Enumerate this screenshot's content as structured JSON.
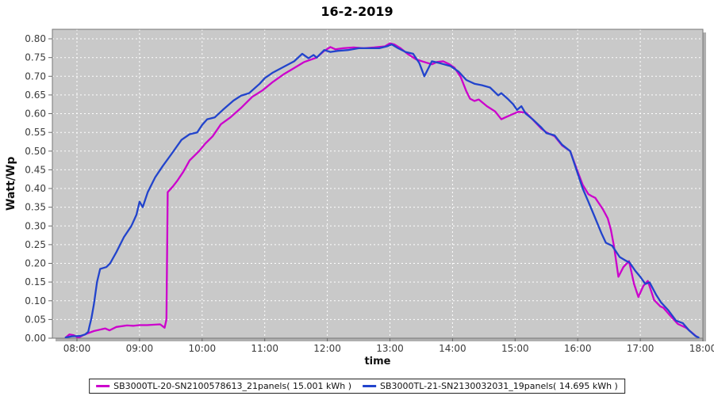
{
  "chart_data": {
    "type": "line",
    "title": "16-2-2019",
    "x_axis": {
      "title": "time",
      "min": 7.607,
      "max": 18.0,
      "ticks": [
        {
          "v": 8,
          "label": "08:00"
        },
        {
          "v": 9,
          "label": "09:00"
        },
        {
          "v": 10,
          "label": "10:00"
        },
        {
          "v": 11,
          "label": "11:00"
        },
        {
          "v": 12,
          "label": "12:00"
        },
        {
          "v": 13,
          "label": "13:00"
        },
        {
          "v": 14,
          "label": "14:00"
        },
        {
          "v": 15,
          "label": "15:00"
        },
        {
          "v": 16,
          "label": "16:00"
        },
        {
          "v": 17,
          "label": "17:00"
        },
        {
          "v": 18,
          "label": "18:00"
        }
      ]
    },
    "y_axis": {
      "title": "Watt/Wp",
      "min": 0,
      "max": 0.8255,
      "ticks": [
        {
          "v": 0.0,
          "label": "0.00"
        },
        {
          "v": 0.05,
          "label": "0.05"
        },
        {
          "v": 0.1,
          "label": "0.10"
        },
        {
          "v": 0.15,
          "label": "0.15"
        },
        {
          "v": 0.2,
          "label": "0.20"
        },
        {
          "v": 0.25,
          "label": "0.25"
        },
        {
          "v": 0.3,
          "label": "0.30"
        },
        {
          "v": 0.35,
          "label": "0.35"
        },
        {
          "v": 0.4,
          "label": "0.40"
        },
        {
          "v": 0.45,
          "label": "0.45"
        },
        {
          "v": 0.5,
          "label": "0.50"
        },
        {
          "v": 0.55,
          "label": "0.55"
        },
        {
          "v": 0.6,
          "label": "0.60"
        },
        {
          "v": 0.65,
          "label": "0.65"
        },
        {
          "v": 0.7,
          "label": "0.70"
        },
        {
          "v": 0.75,
          "label": "0.75"
        },
        {
          "v": 0.8,
          "label": "0.80"
        }
      ]
    },
    "plot": {
      "bg": "#C9C9C9",
      "grid_color": "#FFFFFF",
      "grid_dash": "2,3",
      "border_color": "#777777",
      "shadow_color": "#AFAFAF",
      "tick_color": "#666666",
      "stroke_width": 2.3
    },
    "series": [
      {
        "name": "SB3000TL-20-SN2100578613_21panels( 15.001 kWh )",
        "energy_kwh": "15.001",
        "color": "#CC00CC",
        "points": [
          [
            7.82,
            0.002
          ],
          [
            7.88,
            0.01
          ],
          [
            7.95,
            0.008
          ],
          [
            8.02,
            0.001
          ],
          [
            8.1,
            0.008
          ],
          [
            8.17,
            0.013
          ],
          [
            8.27,
            0.019
          ],
          [
            8.45,
            0.026
          ],
          [
            8.52,
            0.021
          ],
          [
            8.63,
            0.03
          ],
          [
            8.8,
            0.034
          ],
          [
            8.9,
            0.033
          ],
          [
            9.0,
            0.035
          ],
          [
            9.12,
            0.035
          ],
          [
            9.22,
            0.036
          ],
          [
            9.33,
            0.037
          ],
          [
            9.4,
            0.028
          ],
          [
            9.43,
            0.05
          ],
          [
            9.45,
            0.39
          ],
          [
            9.53,
            0.405
          ],
          [
            9.6,
            0.42
          ],
          [
            9.7,
            0.445
          ],
          [
            9.8,
            0.475
          ],
          [
            9.95,
            0.5
          ],
          [
            10.05,
            0.52
          ],
          [
            10.17,
            0.54
          ],
          [
            10.3,
            0.572
          ],
          [
            10.45,
            0.59
          ],
          [
            10.62,
            0.615
          ],
          [
            10.8,
            0.645
          ],
          [
            10.97,
            0.663
          ],
          [
            11.13,
            0.685
          ],
          [
            11.3,
            0.705
          ],
          [
            11.47,
            0.722
          ],
          [
            11.63,
            0.738
          ],
          [
            11.83,
            0.75
          ],
          [
            11.95,
            0.768
          ],
          [
            12.05,
            0.778
          ],
          [
            12.13,
            0.772
          ],
          [
            12.25,
            0.775
          ],
          [
            12.42,
            0.777
          ],
          [
            12.58,
            0.775
          ],
          [
            12.75,
            0.777
          ],
          [
            12.92,
            0.78
          ],
          [
            13.0,
            0.788
          ],
          [
            13.07,
            0.785
          ],
          [
            13.17,
            0.775
          ],
          [
            13.28,
            0.76
          ],
          [
            13.42,
            0.745
          ],
          [
            13.55,
            0.738
          ],
          [
            13.67,
            0.732
          ],
          [
            13.75,
            0.738
          ],
          [
            13.85,
            0.74
          ],
          [
            13.95,
            0.732
          ],
          [
            14.03,
            0.723
          ],
          [
            14.13,
            0.698
          ],
          [
            14.22,
            0.66
          ],
          [
            14.28,
            0.64
          ],
          [
            14.35,
            0.634
          ],
          [
            14.42,
            0.638
          ],
          [
            14.55,
            0.62
          ],
          [
            14.68,
            0.606
          ],
          [
            14.78,
            0.585
          ],
          [
            14.87,
            0.592
          ],
          [
            14.95,
            0.598
          ],
          [
            15.05,
            0.605
          ],
          [
            15.17,
            0.603
          ],
          [
            15.25,
            0.59
          ],
          [
            15.42,
            0.56
          ],
          [
            15.5,
            0.55
          ],
          [
            15.63,
            0.54
          ],
          [
            15.75,
            0.515
          ],
          [
            15.88,
            0.5
          ],
          [
            16.0,
            0.445
          ],
          [
            16.08,
            0.41
          ],
          [
            16.17,
            0.385
          ],
          [
            16.22,
            0.38
          ],
          [
            16.28,
            0.375
          ],
          [
            16.4,
            0.345
          ],
          [
            16.48,
            0.32
          ],
          [
            16.53,
            0.29
          ],
          [
            16.58,
            0.245
          ],
          [
            16.65,
            0.164
          ],
          [
            16.73,
            0.19
          ],
          [
            16.82,
            0.206
          ],
          [
            16.9,
            0.145
          ],
          [
            16.97,
            0.11
          ],
          [
            17.05,
            0.14
          ],
          [
            17.12,
            0.153
          ],
          [
            17.22,
            0.102
          ],
          [
            17.32,
            0.085
          ],
          [
            17.37,
            0.081
          ],
          [
            17.48,
            0.06
          ],
          [
            17.6,
            0.038
          ],
          [
            17.73,
            0.028
          ],
          [
            17.85,
            0.011
          ],
          [
            17.9,
            0.004
          ]
        ]
      },
      {
        "name": "SB3000TL-21-SN2130032031_19panels( 14.695 kWh )",
        "energy_kwh": "14.695",
        "color": "#2244CC",
        "points": [
          [
            7.82,
            0.002
          ],
          [
            7.92,
            0.005
          ],
          [
            8.05,
            0.006
          ],
          [
            8.13,
            0.01
          ],
          [
            8.18,
            0.017
          ],
          [
            8.2,
            0.032
          ],
          [
            8.23,
            0.053
          ],
          [
            8.27,
            0.09
          ],
          [
            8.32,
            0.15
          ],
          [
            8.37,
            0.185
          ],
          [
            8.47,
            0.19
          ],
          [
            8.53,
            0.2
          ],
          [
            8.63,
            0.23
          ],
          [
            8.75,
            0.27
          ],
          [
            8.87,
            0.3
          ],
          [
            8.95,
            0.33
          ],
          [
            9.0,
            0.365
          ],
          [
            9.05,
            0.35
          ],
          [
            9.13,
            0.39
          ],
          [
            9.25,
            0.43
          ],
          [
            9.37,
            0.46
          ],
          [
            9.5,
            0.49
          ],
          [
            9.67,
            0.53
          ],
          [
            9.8,
            0.545
          ],
          [
            9.92,
            0.55
          ],
          [
            10.0,
            0.57
          ],
          [
            10.08,
            0.585
          ],
          [
            10.2,
            0.59
          ],
          [
            10.33,
            0.61
          ],
          [
            10.5,
            0.635
          ],
          [
            10.62,
            0.648
          ],
          [
            10.75,
            0.655
          ],
          [
            10.92,
            0.68
          ],
          [
            11.0,
            0.695
          ],
          [
            11.13,
            0.71
          ],
          [
            11.3,
            0.725
          ],
          [
            11.47,
            0.74
          ],
          [
            11.6,
            0.76
          ],
          [
            11.7,
            0.748
          ],
          [
            11.78,
            0.757
          ],
          [
            11.83,
            0.75
          ],
          [
            11.95,
            0.77
          ],
          [
            12.05,
            0.765
          ],
          [
            12.17,
            0.768
          ],
          [
            12.33,
            0.77
          ],
          [
            12.5,
            0.775
          ],
          [
            12.67,
            0.775
          ],
          [
            12.83,
            0.775
          ],
          [
            12.95,
            0.78
          ],
          [
            13.03,
            0.785
          ],
          [
            13.13,
            0.775
          ],
          [
            13.25,
            0.765
          ],
          [
            13.37,
            0.76
          ],
          [
            13.47,
            0.735
          ],
          [
            13.55,
            0.7
          ],
          [
            13.67,
            0.74
          ],
          [
            13.8,
            0.735
          ],
          [
            13.97,
            0.727
          ],
          [
            14.1,
            0.712
          ],
          [
            14.22,
            0.69
          ],
          [
            14.35,
            0.68
          ],
          [
            14.47,
            0.676
          ],
          [
            14.6,
            0.67
          ],
          [
            14.73,
            0.649
          ],
          [
            14.78,
            0.655
          ],
          [
            14.88,
            0.64
          ],
          [
            14.97,
            0.625
          ],
          [
            15.03,
            0.61
          ],
          [
            15.1,
            0.62
          ],
          [
            15.17,
            0.6
          ],
          [
            15.28,
            0.585
          ],
          [
            15.42,
            0.563
          ],
          [
            15.5,
            0.548
          ],
          [
            15.63,
            0.542
          ],
          [
            15.75,
            0.517
          ],
          [
            15.88,
            0.5
          ],
          [
            16.0,
            0.44
          ],
          [
            16.08,
            0.4
          ],
          [
            16.17,
            0.365
          ],
          [
            16.27,
            0.325
          ],
          [
            16.38,
            0.28
          ],
          [
            16.45,
            0.255
          ],
          [
            16.55,
            0.247
          ],
          [
            16.67,
            0.217
          ],
          [
            16.77,
            0.207
          ],
          [
            16.83,
            0.202
          ],
          [
            16.92,
            0.18
          ],
          [
            17.0,
            0.164
          ],
          [
            17.08,
            0.145
          ],
          [
            17.15,
            0.149
          ],
          [
            17.25,
            0.117
          ],
          [
            17.33,
            0.096
          ],
          [
            17.45,
            0.074
          ],
          [
            17.57,
            0.047
          ],
          [
            17.68,
            0.04
          ],
          [
            17.78,
            0.021
          ],
          [
            17.88,
            0.006
          ],
          [
            17.93,
            0.002
          ]
        ]
      }
    ]
  }
}
